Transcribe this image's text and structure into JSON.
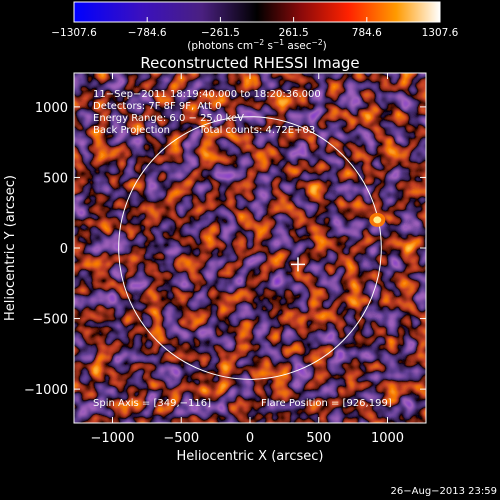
{
  "chart_data": {
    "type": "heatmap",
    "title": "Reconstructed RHESSI Image",
    "xlabel": "Heliocentric X (arcsec)",
    "ylabel": "Heliocentric Y (arcsec)",
    "xlim": [
      -1280,
      1280
    ],
    "ylim": [
      -1240,
      1240
    ],
    "x_ticks": [
      -1000,
      -500,
      0,
      500,
      1000
    ],
    "y_ticks": [
      -1000,
      -500,
      0,
      500,
      1000
    ],
    "colorbar": {
      "ticks": [
        -1307.6,
        -784.6,
        -261.5,
        261.5,
        784.6,
        1307.6
      ],
      "tick_labels": [
        "−1307.6",
        "−784.6",
        "−261.5",
        "261.5",
        "784.6",
        "1307.6"
      ],
      "unit_prefix": "(photons cm",
      "unit_exp1": "−2",
      "unit_mid": " s",
      "unit_exp2": "−1",
      "unit_mid2": " asec",
      "unit_exp3": "−2",
      "unit_suffix": ")",
      "colors": [
        "#0000ff",
        "#2a00c8",
        "#5a1aa0",
        "#000000",
        "#9a1010",
        "#ff3300",
        "#ffa000",
        "#ffffff"
      ]
    },
    "annotations": {
      "line1": "11−Sep−2011 18:19:40.000 to 18:20:36.000",
      "line2": "Detectors: 7F 8F 9F, Att 0",
      "line3": "Energy Range: 6.0 − 25.0 keV",
      "line4a": "Back Projection",
      "line4b": "Total counts: 4.72E+03",
      "spin_axis": "Spin Axis = [349,−116]",
      "flare_position": "Flare Position = [926,199]"
    },
    "solar_limb_radius": 955,
    "spin_axis_xy": [
      349,
      -116
    ],
    "bright_source_xy": [
      926,
      199
    ]
  },
  "footer_date": "26−Aug−2013 23:59"
}
